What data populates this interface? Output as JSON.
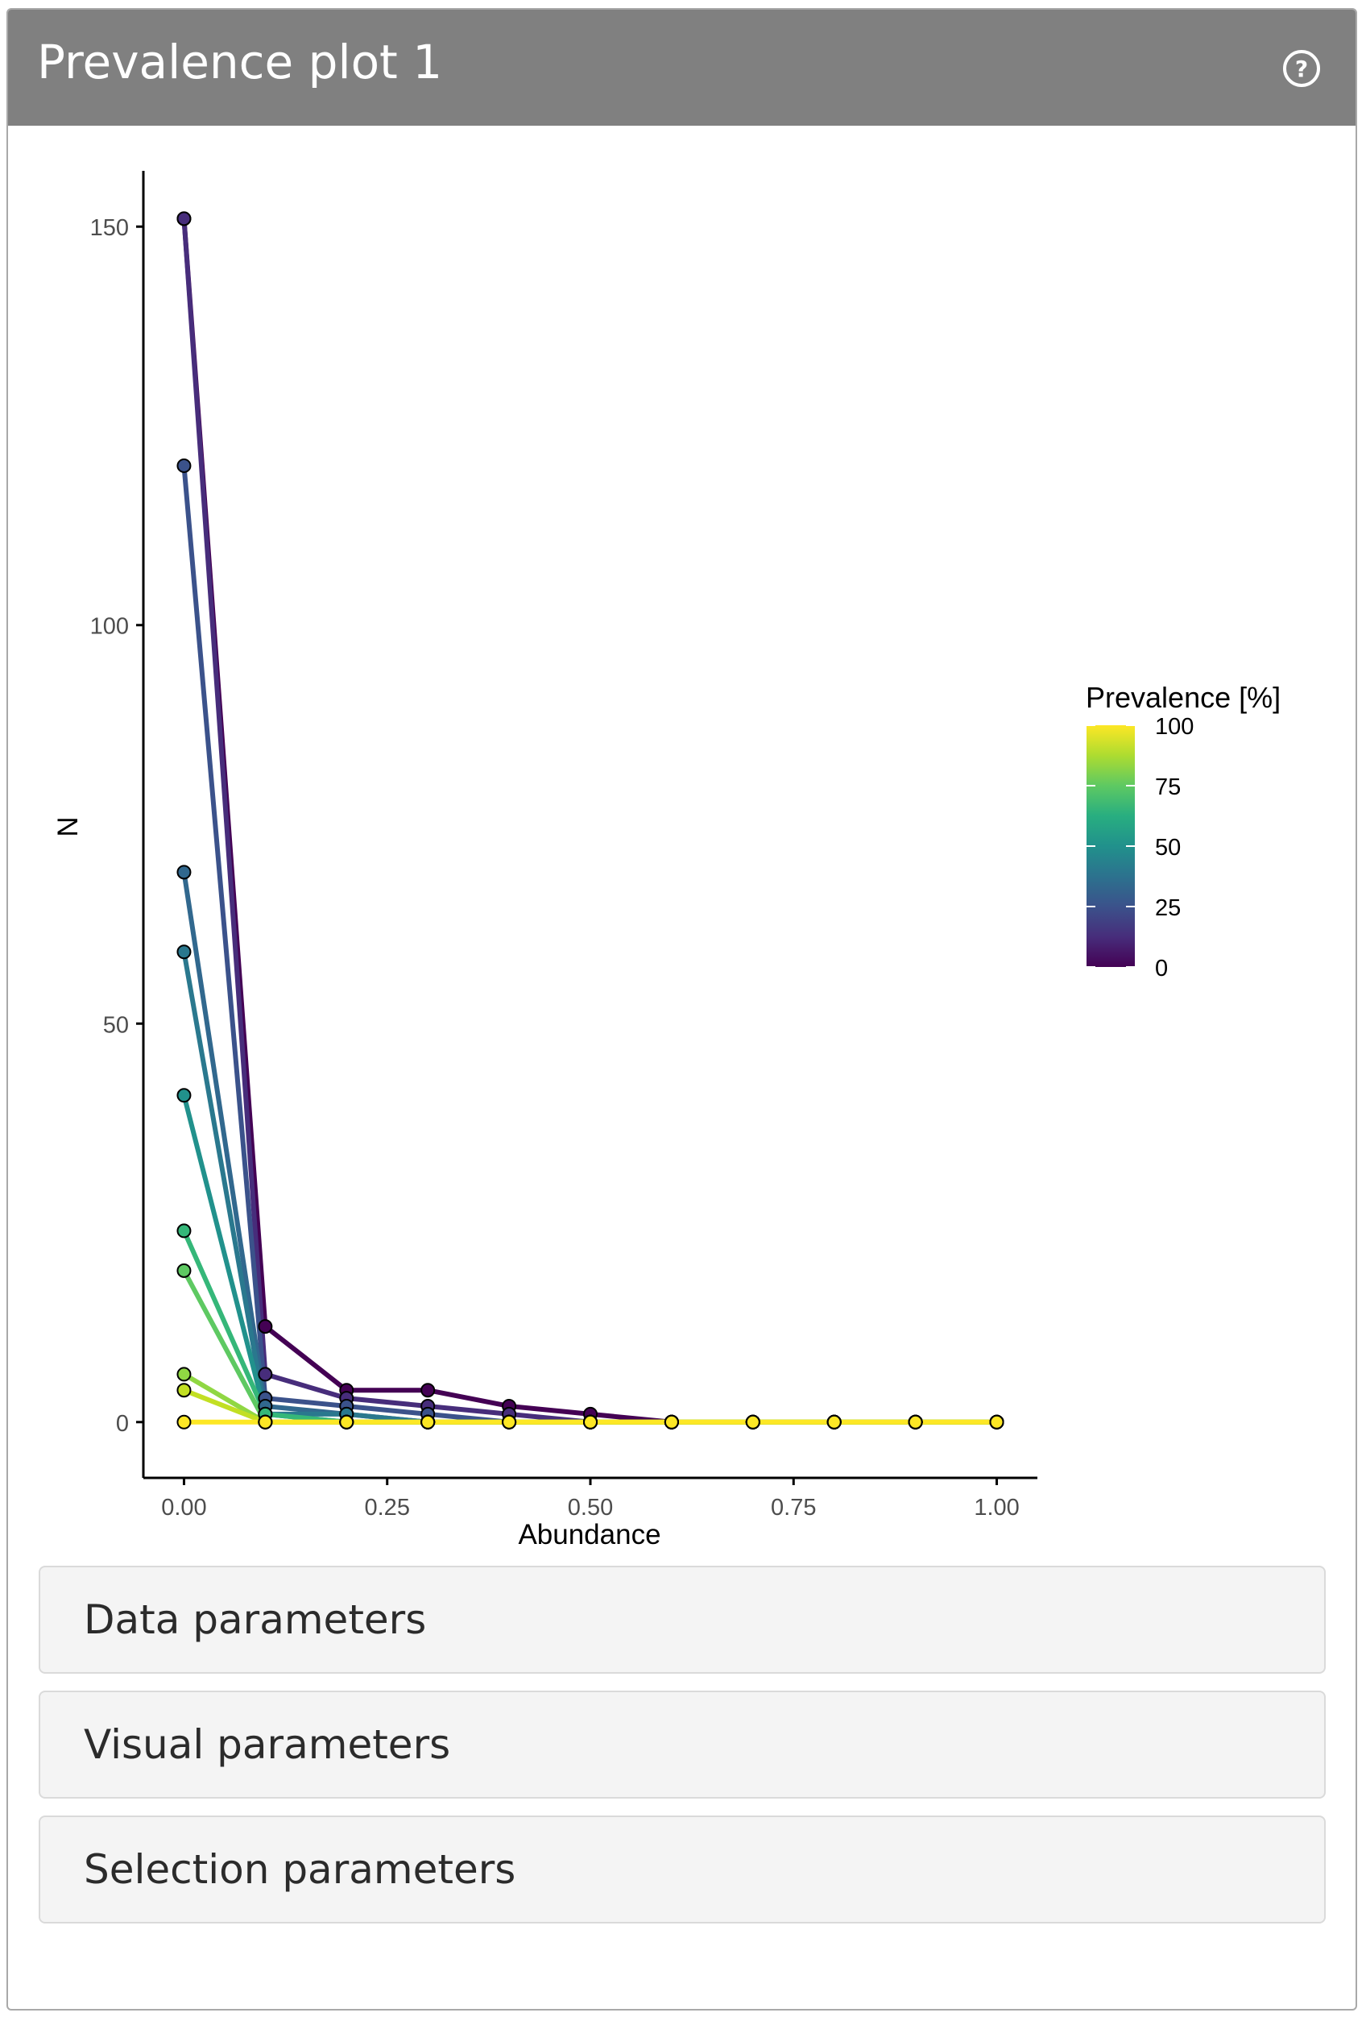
{
  "panel": {
    "title": "Prevalence plot 1",
    "help_icon": "question-circle-icon",
    "header_color": "#808080"
  },
  "chart_data": {
    "type": "line",
    "title": "",
    "xlabel": "Abundance",
    "ylabel": "N",
    "xlim": [
      -0.05,
      1.05
    ],
    "ylim": [
      -7,
      157
    ],
    "x_ticks": [
      "0.00",
      "0.25",
      "0.50",
      "0.75",
      "1.00"
    ],
    "y_ticks": [
      "0",
      "50",
      "100",
      "150"
    ],
    "x": [
      0,
      0.1,
      0.2,
      0.3,
      0.4,
      0.5,
      0.6,
      0.7,
      0.8,
      0.9,
      1.0
    ],
    "grid": false,
    "legend": {
      "title": "Prevalence [%]",
      "type": "colorbar",
      "palette": "viridis",
      "range": [
        0,
        100
      ],
      "ticks": [
        "100",
        "75",
        "50",
        "25",
        "0"
      ],
      "placement": "right"
    },
    "series": [
      {
        "prevalence": 0,
        "color": "#440154",
        "values": [
          151,
          12,
          4,
          4,
          2,
          1,
          0,
          0,
          0,
          0,
          0
        ]
      },
      {
        "prevalence": 10,
        "color": "#472d7b",
        "values": [
          151,
          6,
          3,
          2,
          1,
          0,
          0,
          0,
          0,
          0,
          0
        ]
      },
      {
        "prevalence": 20,
        "color": "#3b528b",
        "values": [
          120,
          3,
          2,
          1,
          0,
          0,
          0,
          0,
          0,
          0,
          0
        ]
      },
      {
        "prevalence": 30,
        "color": "#31688e",
        "values": [
          69,
          2,
          1,
          0,
          0,
          0,
          0,
          0,
          0,
          0,
          0
        ]
      },
      {
        "prevalence": 40,
        "color": "#2a788e",
        "values": [
          59,
          1,
          1,
          0,
          0,
          0,
          0,
          0,
          0,
          0,
          0
        ]
      },
      {
        "prevalence": 50,
        "color": "#21918c",
        "values": [
          41,
          1,
          0,
          0,
          0,
          0,
          0,
          0,
          0,
          0,
          0
        ]
      },
      {
        "prevalence": 60,
        "color": "#35b779",
        "values": [
          24,
          1,
          0,
          0,
          0,
          0,
          0,
          0,
          0,
          0,
          0
        ]
      },
      {
        "prevalence": 70,
        "color": "#5ec962",
        "values": [
          19,
          0,
          0,
          0,
          0,
          0,
          0,
          0,
          0,
          0,
          0
        ]
      },
      {
        "prevalence": 80,
        "color": "#90d743",
        "values": [
          6,
          0,
          0,
          0,
          0,
          0,
          0,
          0,
          0,
          0,
          0
        ]
      },
      {
        "prevalence": 90,
        "color": "#c2df23",
        "values": [
          4,
          0,
          0,
          0,
          0,
          0,
          0,
          0,
          0,
          0,
          0
        ]
      },
      {
        "prevalence": 100,
        "color": "#fde725",
        "values": [
          0,
          0,
          0,
          0,
          0,
          0,
          0,
          0,
          0,
          0,
          0
        ]
      }
    ]
  },
  "accordions": [
    {
      "label": "Data parameters"
    },
    {
      "label": "Visual parameters"
    },
    {
      "label": "Selection parameters"
    }
  ]
}
